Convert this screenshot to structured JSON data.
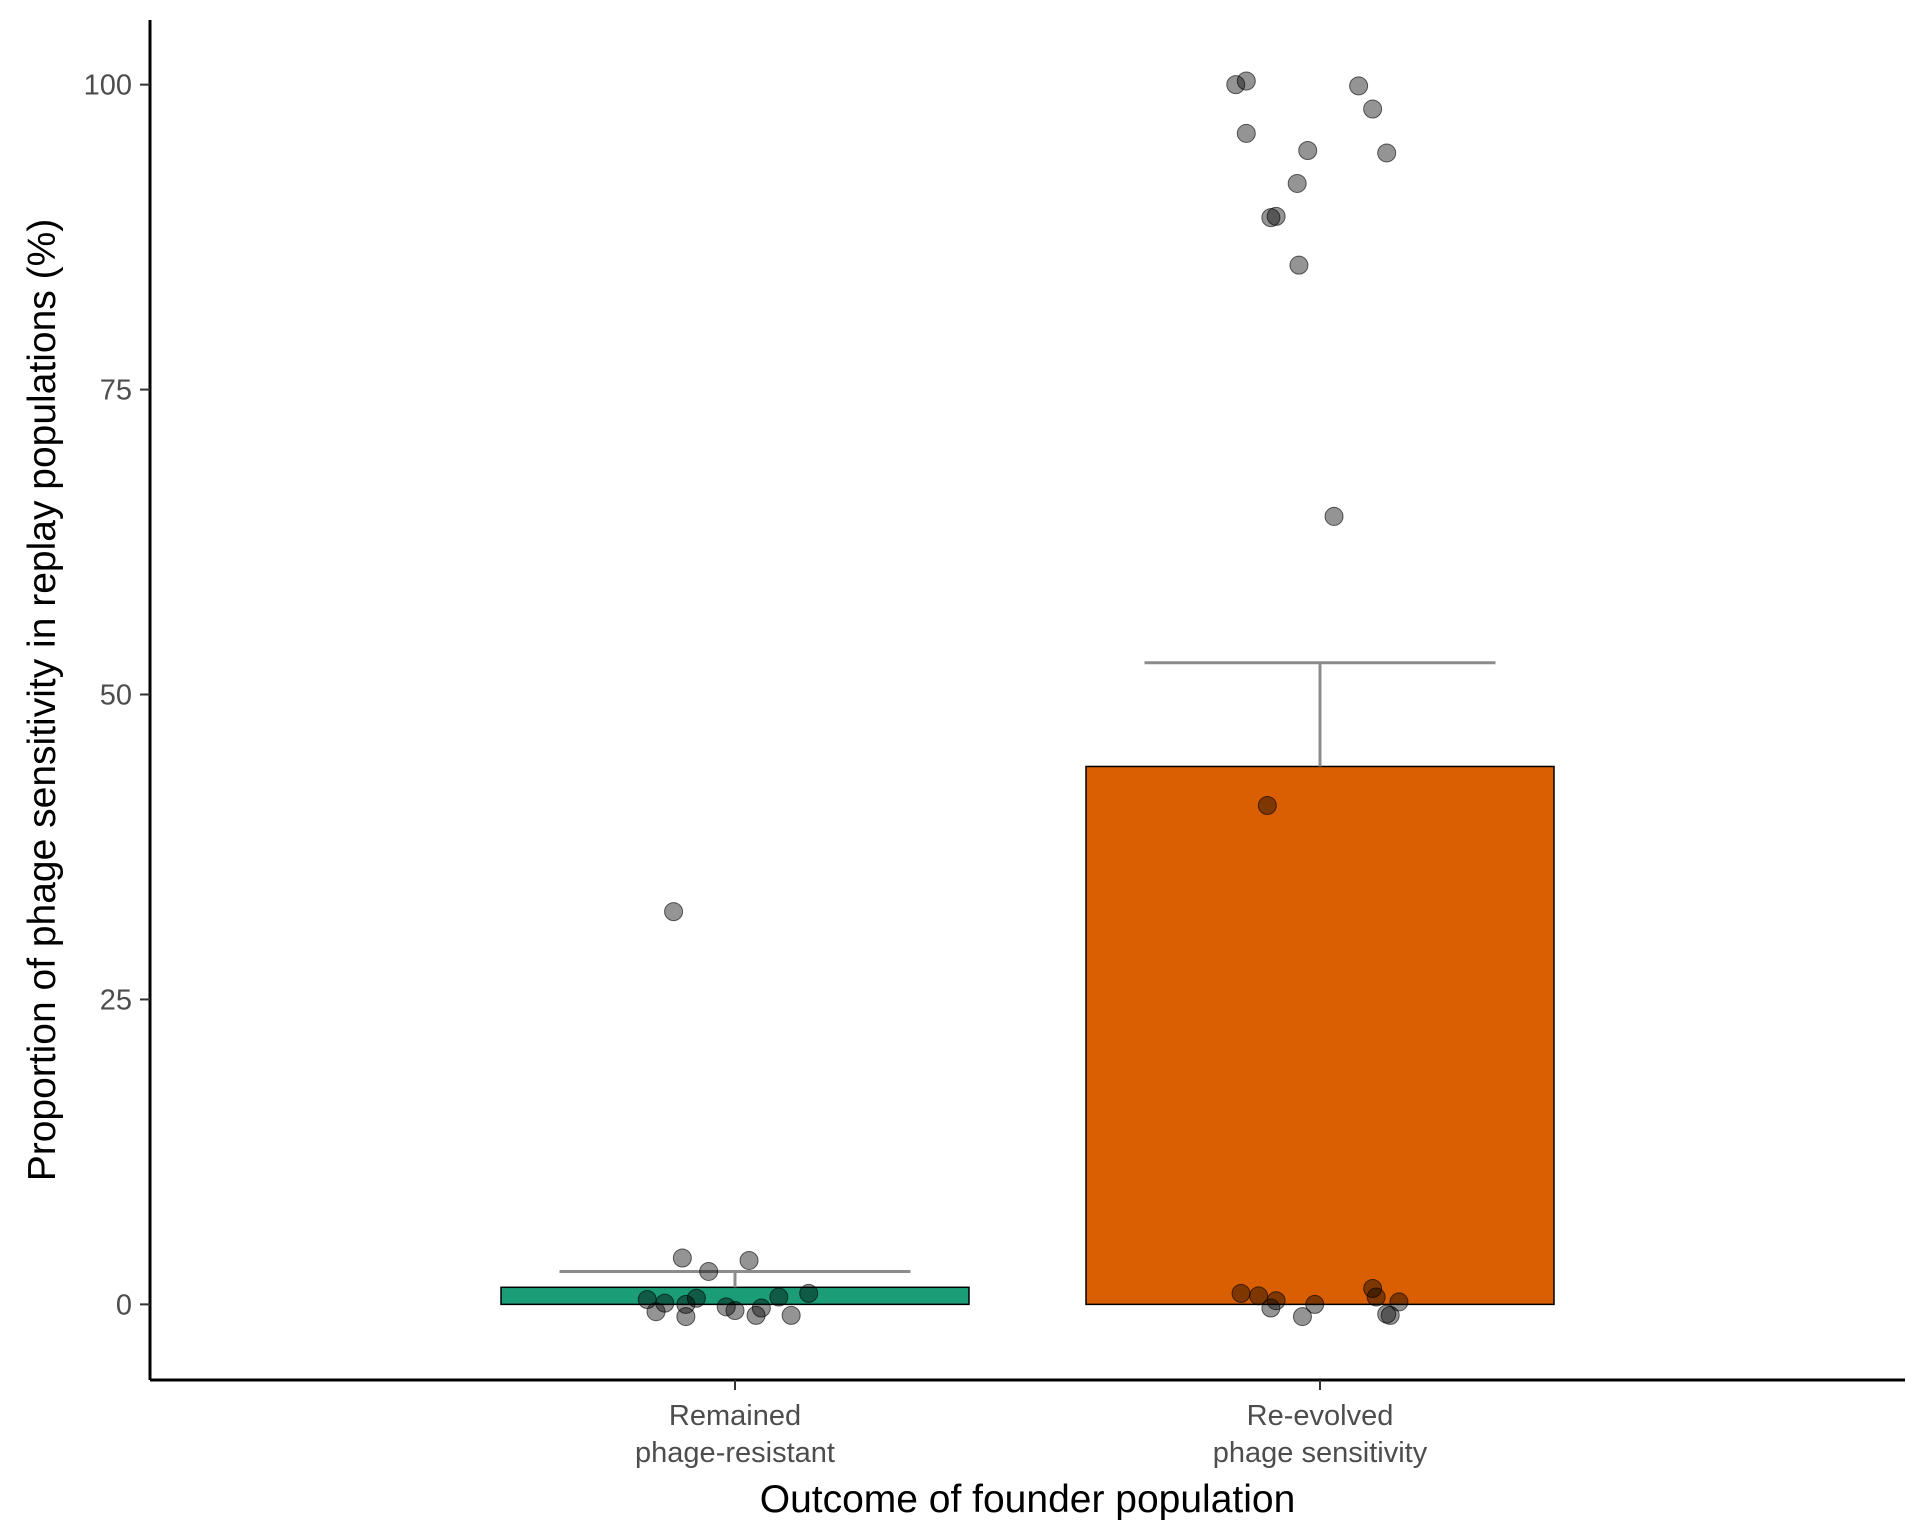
{
  "chart_data": {
    "type": "bar",
    "title": "",
    "xlabel": "Outcome of founder population",
    "ylabel": "Proportion of phage sensitivity in replay populations (%)",
    "ylim": [
      -6.2,
      105.3
    ],
    "y_ticks": [
      0,
      25,
      50,
      75,
      100
    ],
    "grid": false,
    "legend": "none",
    "categories": [
      {
        "lines": [
          "Remained",
          "phage-resistant"
        ]
      },
      {
        "lines": [
          "Re-evolved",
          "phage sensitivity"
        ]
      }
    ],
    "bars": [
      {
        "category": "Remained phage-resistant",
        "mean": 1.4,
        "error_upper": 2.7,
        "color": "#1b9e77"
      },
      {
        "category": "Re-evolved phage sensitivity",
        "mean": 44.1,
        "error_upper": 52.6,
        "color": "#d95f02"
      }
    ],
    "points": [
      {
        "category": 0,
        "offset": -0.035,
        "value": 32.2
      },
      {
        "category": 0,
        "offset": -0.03,
        "value": 3.8
      },
      {
        "category": 0,
        "offset": 0.008,
        "value": 3.6
      },
      {
        "category": 0,
        "offset": -0.015,
        "value": 2.7
      },
      {
        "category": 0,
        "offset": 0.042,
        "value": 0.9
      },
      {
        "category": 0,
        "offset": 0.025,
        "value": 0.6
      },
      {
        "category": 0,
        "offset": -0.022,
        "value": 0.5
      },
      {
        "category": 0,
        "offset": -0.05,
        "value": 0.4
      },
      {
        "category": 0,
        "offset": -0.04,
        "value": 0.1
      },
      {
        "category": 0,
        "offset": -0.028,
        "value": 0.0
      },
      {
        "category": 0,
        "offset": -0.005,
        "value": -0.2
      },
      {
        "category": 0,
        "offset": 0.015,
        "value": -0.3
      },
      {
        "category": 0,
        "offset": -0.045,
        "value": -0.6
      },
      {
        "category": 0,
        "offset": 0.0,
        "value": -0.5
      },
      {
        "category": 0,
        "offset": -0.028,
        "value": -1.0
      },
      {
        "category": 0,
        "offset": 0.012,
        "value": -0.9
      },
      {
        "category": 0,
        "offset": 0.032,
        "value": -0.9
      },
      {
        "category": 1,
        "offset": -0.048,
        "value": 100.0
      },
      {
        "category": 1,
        "offset": -0.042,
        "value": 100.3
      },
      {
        "category": 1,
        "offset": 0.022,
        "value": 99.9
      },
      {
        "category": 1,
        "offset": 0.03,
        "value": 98.0
      },
      {
        "category": 1,
        "offset": -0.042,
        "value": 96.0
      },
      {
        "category": 1,
        "offset": -0.007,
        "value": 94.6
      },
      {
        "category": 1,
        "offset": 0.038,
        "value": 94.4
      },
      {
        "category": 1,
        "offset": -0.013,
        "value": 91.9
      },
      {
        "category": 1,
        "offset": -0.028,
        "value": 89.1
      },
      {
        "category": 1,
        "offset": -0.025,
        "value": 89.2
      },
      {
        "category": 1,
        "offset": -0.012,
        "value": 85.2
      },
      {
        "category": 1,
        "offset": 0.008,
        "value": 64.6
      },
      {
        "category": 1,
        "offset": -0.03,
        "value": 40.9
      },
      {
        "category": 1,
        "offset": -0.045,
        "value": 0.9
      },
      {
        "category": 1,
        "offset": -0.035,
        "value": 0.7
      },
      {
        "category": 1,
        "offset": -0.025,
        "value": 0.3
      },
      {
        "category": 1,
        "offset": 0.03,
        "value": 1.3
      },
      {
        "category": 1,
        "offset": 0.032,
        "value": 0.6
      },
      {
        "category": 1,
        "offset": 0.045,
        "value": 0.2
      },
      {
        "category": 1,
        "offset": -0.003,
        "value": 0.0
      },
      {
        "category": 1,
        "offset": -0.028,
        "value": -0.3
      },
      {
        "category": 1,
        "offset": -0.01,
        "value": -1.0
      },
      {
        "category": 1,
        "offset": 0.04,
        "value": -0.9
      },
      {
        "category": 1,
        "offset": 0.038,
        "value": -0.8
      }
    ],
    "point_color": "#000000"
  }
}
